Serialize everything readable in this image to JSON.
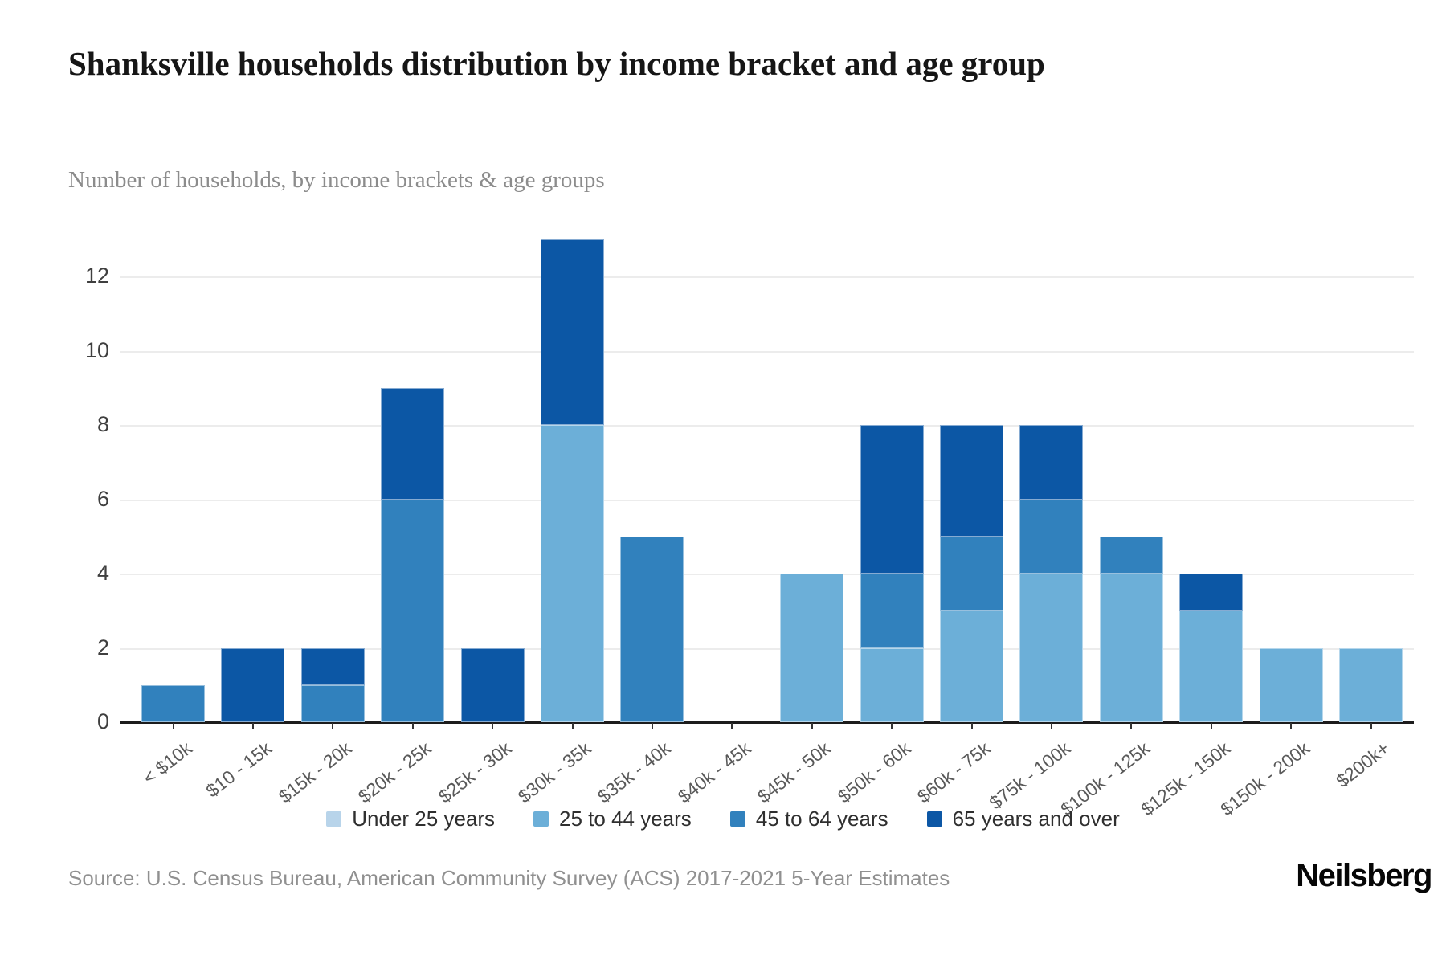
{
  "title": "Shanksville households distribution by income bracket and age group",
  "subtitle": "Number of households, by income brackets & age groups",
  "source": "Source: U.S. Census Bureau, American Community Survey (ACS) 2017-2021 5-Year Estimates",
  "brand": "Neilsberg",
  "chart_data": {
    "type": "bar",
    "stacked": true,
    "title": "Shanksville households distribution by income bracket and age group",
    "xlabel": "",
    "ylabel": "Number of households",
    "categories": [
      "< $10k",
      "$10 - 15k",
      "$15k - 20k",
      "$20k - 25k",
      "$25k - 30k",
      "$30k - 35k",
      "$35k - 40k",
      "$40k - 45k",
      "$45k - 50k",
      "$50k - 60k",
      "$60k - 75k",
      "$75k - 100k",
      "$100k - 125k",
      "$125k - 150k",
      "$150k - 200k",
      "$200k+"
    ],
    "series": [
      {
        "name": "Under 25 years",
        "color": "#b8d4ea",
        "values": [
          0,
          0,
          0,
          0,
          0,
          0,
          0,
          0,
          0,
          0,
          0,
          0,
          0,
          0,
          0,
          0
        ]
      },
      {
        "name": "25 to 44 years",
        "color": "#6cafd8",
        "values": [
          0,
          0,
          0,
          0,
          0,
          8,
          0,
          0,
          4,
          2,
          3,
          4,
          4,
          3,
          2,
          2
        ]
      },
      {
        "name": "45 to 64 years",
        "color": "#3181bd",
        "values": [
          1,
          0,
          1,
          6,
          0,
          0,
          5,
          0,
          0,
          2,
          2,
          2,
          1,
          0,
          0,
          0
        ]
      },
      {
        "name": "65 years and over",
        "color": "#0c57a5",
        "values": [
          0,
          2,
          1,
          3,
          2,
          5,
          0,
          0,
          0,
          4,
          3,
          2,
          0,
          1,
          0,
          0
        ]
      }
    ],
    "totals": [
      1,
      2,
      2,
      9,
      2,
      13,
      5,
      0,
      4,
      8,
      8,
      8,
      5,
      4,
      2,
      2
    ],
    "yticks": [
      0,
      2,
      4,
      6,
      8,
      10,
      12
    ],
    "ylim": [
      0,
      13
    ],
    "grid": true,
    "legend_position": "bottom"
  }
}
